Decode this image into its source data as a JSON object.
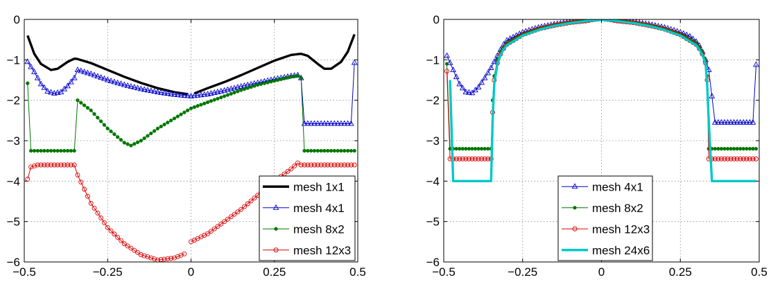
{
  "chart_data": [
    {
      "type": "line",
      "xlim": [
        -0.5,
        0.5
      ],
      "ylim": [
        -6,
        0
      ],
      "xticks": [
        "−0.5",
        "−0.25",
        "0",
        "0.25",
        "0.5"
      ],
      "yticks": [
        "0",
        "−1",
        "−2",
        "−3",
        "−4",
        "−5",
        "−6"
      ],
      "grid": true,
      "legend_position": "bottom-right",
      "series": [
        {
          "name": "mesh 1x1",
          "color": "#000000",
          "marker": "none",
          "line": "thick",
          "segments": [
            {
              "x": [
                -0.49,
                -0.47,
                -0.45,
                -0.42,
                -0.4,
                -0.37,
                -0.35,
                -0.34,
                -0.3,
                -0.25,
                -0.2,
                -0.15,
                -0.1,
                -0.05,
                -0.01
              ],
              "y": [
                -0.4,
                -0.85,
                -1.1,
                -1.25,
                -1.22,
                -1.05,
                -0.97,
                -0.98,
                -1.08,
                -1.25,
                -1.42,
                -1.57,
                -1.7,
                -1.8,
                -1.85
              ]
            },
            {
              "x": [
                0.01,
                0.05,
                0.1,
                0.15,
                0.2,
                0.25,
                0.3,
                0.33,
                0.35,
                0.38,
                0.4,
                0.42,
                0.45,
                0.47,
                0.49
              ],
              "y": [
                -1.83,
                -1.7,
                -1.55,
                -1.38,
                -1.2,
                -1.02,
                -0.88,
                -0.85,
                -0.9,
                -1.1,
                -1.22,
                -1.22,
                -1.05,
                -0.8,
                -0.37
              ]
            }
          ]
        },
        {
          "name": "mesh 4x1",
          "color": "#0000cc",
          "marker": "triangle",
          "segments": [
            {
              "x": [
                -0.49,
                -0.47,
                -0.45,
                -0.43,
                -0.41,
                -0.39,
                -0.37,
                -0.35,
                -0.34,
                -0.3,
                -0.25,
                -0.2,
                -0.15,
                -0.1,
                -0.05,
                0,
                0.05,
                0.1,
                0.15,
                0.2,
                0.25,
                0.3,
                0.32,
                0.33,
                0.34,
                0.36,
                0.38,
                0.4,
                0.42,
                0.44,
                0.46,
                0.48,
                0.49
              ],
              "y": [
                -1.05,
                -1.3,
                -1.6,
                -1.78,
                -1.83,
                -1.8,
                -1.65,
                -1.45,
                -1.25,
                -1.35,
                -1.5,
                -1.62,
                -1.72,
                -1.8,
                -1.86,
                -1.9,
                -1.85,
                -1.76,
                -1.66,
                -1.57,
                -1.48,
                -1.4,
                -1.38,
                -1.45,
                -2.58,
                -2.58,
                -2.58,
                -2.58,
                -2.58,
                -2.58,
                -2.58,
                -2.58,
                -1.07
              ]
            }
          ]
        },
        {
          "name": "mesh 8x2",
          "color": "#007700",
          "marker": "dot",
          "segments": [
            {
              "x": [
                -0.49,
                -0.48,
                -0.46,
                -0.44,
                -0.42,
                -0.4,
                -0.38,
                -0.35,
                -0.34,
                -0.3,
                -0.25,
                -0.2,
                -0.18,
                -0.15,
                -0.1,
                -0.05,
                0,
                0.05,
                0.1,
                0.15,
                0.2,
                0.25,
                0.3,
                0.32,
                0.33,
                0.34,
                0.37,
                0.4,
                0.43,
                0.46,
                0.49
              ],
              "y": [
                -1.58,
                -3.25,
                -3.25,
                -3.25,
                -3.25,
                -3.25,
                -3.25,
                -3.25,
                -2.0,
                -2.25,
                -2.7,
                -3.05,
                -3.12,
                -3.0,
                -2.7,
                -2.45,
                -2.2,
                -2.05,
                -1.9,
                -1.75,
                -1.62,
                -1.52,
                -1.42,
                -1.4,
                -1.45,
                -3.25,
                -3.25,
                -3.25,
                -3.25,
                -3.25,
                -3.25
              ]
            }
          ]
        },
        {
          "name": "mesh 12x3",
          "color": "#dd0000",
          "marker": "circle",
          "segments": [
            {
              "x": [
                -0.49,
                -0.48,
                -0.46,
                -0.44,
                -0.42,
                -0.4,
                -0.38,
                -0.35,
                -0.34,
                -0.3,
                -0.25,
                -0.2,
                -0.15,
                -0.1,
                -0.05,
                -0.02
              ],
              "y": [
                -3.95,
                -3.65,
                -3.6,
                -3.6,
                -3.6,
                -3.6,
                -3.6,
                -3.6,
                -3.85,
                -4.55,
                -5.15,
                -5.55,
                -5.82,
                -5.95,
                -5.9,
                -5.8
              ]
            },
            {
              "x": [
                0.0,
                0.05,
                0.1,
                0.15,
                0.2,
                0.25,
                0.3,
                0.32,
                0.33,
                0.36,
                0.4,
                0.44,
                0.47,
                0.49
              ],
              "y": [
                -5.5,
                -5.3,
                -5.0,
                -4.7,
                -4.35,
                -4.0,
                -3.7,
                -3.55,
                -3.6,
                -3.6,
                -3.6,
                -3.6,
                -3.6,
                -3.6
              ]
            }
          ]
        }
      ]
    },
    {
      "type": "line",
      "xlim": [
        -0.5,
        0.5
      ],
      "ylim": [
        -6,
        0
      ],
      "xticks": [
        "−0.5",
        "−0.25",
        "0",
        "0.25",
        "0.5"
      ],
      "yticks": [
        "0",
        "−1",
        "−2",
        "−3",
        "−4",
        "−5",
        "−6"
      ],
      "grid": true,
      "legend_position": "bottom-center",
      "series": [
        {
          "name": "mesh 4x1",
          "color": "#0000cc",
          "marker": "triangle",
          "segments": [
            {
              "x": [
                -0.49,
                -0.47,
                -0.45,
                -0.43,
                -0.41,
                -0.39,
                -0.37,
                -0.35,
                -0.34,
                -0.33,
                -0.32,
                -0.31,
                -0.3,
                -0.25,
                -0.2,
                -0.15,
                -0.1,
                -0.05,
                0,
                0.05,
                0.1,
                0.15,
                0.2,
                0.25,
                0.28,
                0.3,
                0.31,
                0.32,
                0.33,
                0.34,
                0.36,
                0.38,
                0.4,
                0.42,
                0.44,
                0.46,
                0.48,
                0.49
              ],
              "y": [
                -0.9,
                -1.25,
                -1.6,
                -1.8,
                -1.82,
                -1.68,
                -1.45,
                -1.2,
                -1.05,
                -0.9,
                -0.75,
                -0.62,
                -0.52,
                -0.32,
                -0.2,
                -0.12,
                -0.06,
                -0.02,
                0.02,
                -0.02,
                -0.06,
                -0.12,
                -0.2,
                -0.32,
                -0.42,
                -0.55,
                -0.65,
                -0.8,
                -1.0,
                -1.25,
                -2.55,
                -2.55,
                -2.55,
                -2.55,
                -2.55,
                -2.55,
                -2.55,
                -1.12
              ]
            }
          ]
        },
        {
          "name": "mesh 8x2",
          "color": "#007700",
          "marker": "dot",
          "segments": [
            {
              "x": [
                -0.49,
                -0.48,
                -0.46,
                -0.44,
                -0.42,
                -0.4,
                -0.38,
                -0.35,
                -0.345,
                -0.34,
                -0.33,
                -0.32,
                -0.31,
                -0.3,
                -0.25,
                -0.2,
                -0.15,
                -0.1,
                -0.05,
                0,
                0.05,
                0.1,
                0.15,
                0.2,
                0.25,
                0.3,
                0.31,
                0.32,
                0.33,
                0.335,
                0.34,
                0.37,
                0.4,
                0.43,
                0.46,
                0.49
              ],
              "y": [
                -1.1,
                -3.2,
                -3.2,
                -3.2,
                -3.2,
                -3.2,
                -3.2,
                -3.2,
                -2.0,
                -1.4,
                -1.0,
                -0.8,
                -0.68,
                -0.58,
                -0.36,
                -0.23,
                -0.14,
                -0.07,
                -0.03,
                0.0,
                -0.03,
                -0.07,
                -0.14,
                -0.23,
                -0.36,
                -0.58,
                -0.68,
                -0.8,
                -1.0,
                -1.4,
                -3.2,
                -3.2,
                -3.2,
                -3.2,
                -3.2,
                -3.2
              ]
            }
          ]
        },
        {
          "name": "mesh 12x3",
          "color": "#dd0000",
          "marker": "circle",
          "segments": [
            {
              "x": [
                -0.49,
                -0.48,
                -0.46,
                -0.44,
                -0.42,
                -0.4,
                -0.38,
                -0.35,
                -0.345,
                -0.34,
                -0.33,
                -0.32,
                -0.31,
                -0.3,
                -0.25,
                -0.2,
                -0.15,
                -0.1,
                -0.05,
                0,
                0.05,
                0.1,
                0.15,
                0.2,
                0.25,
                0.3,
                0.31,
                0.32,
                0.33,
                0.335,
                0.34,
                0.37,
                0.4,
                0.43,
                0.46,
                0.49
              ],
              "y": [
                -1.28,
                -3.45,
                -3.45,
                -3.45,
                -3.45,
                -3.45,
                -3.45,
                -3.45,
                -2.3,
                -1.5,
                -1.08,
                -0.86,
                -0.72,
                -0.62,
                -0.38,
                -0.24,
                -0.15,
                -0.08,
                -0.04,
                0.03,
                -0.04,
                -0.08,
                -0.15,
                -0.24,
                -0.38,
                -0.62,
                -0.72,
                -0.86,
                -1.08,
                -1.5,
                -3.45,
                -3.45,
                -3.45,
                -3.45,
                -3.45,
                -3.45
              ]
            }
          ]
        },
        {
          "name": "mesh 24x6",
          "color": "#00c8c8",
          "marker": "none",
          "line": "thick",
          "segments": [
            {
              "x": [
                -0.48,
                -0.47,
                -0.45,
                -0.4,
                -0.35,
                -0.345,
                -0.34,
                -0.33,
                -0.32,
                -0.31,
                -0.3,
                -0.25,
                -0.2,
                -0.15,
                -0.1,
                -0.05,
                0,
                0.05,
                0.1,
                0.15,
                0.2,
                0.25,
                0.3,
                0.31,
                0.32,
                0.33,
                0.335,
                0.34,
                0.35,
                0.4,
                0.45,
                0.49
              ],
              "y": [
                -1.5,
                -4.0,
                -4.0,
                -4.0,
                -4.0,
                -2.5,
                -1.6,
                -1.1,
                -0.88,
                -0.74,
                -0.64,
                -0.4,
                -0.26,
                -0.16,
                -0.09,
                -0.04,
                -0.01,
                -0.04,
                -0.09,
                -0.16,
                -0.26,
                -0.4,
                -0.64,
                -0.74,
                -0.88,
                -1.1,
                -1.6,
                -2.5,
                -4.0,
                -4.0,
                -4.0,
                -4.0
              ]
            }
          ]
        }
      ]
    }
  ]
}
